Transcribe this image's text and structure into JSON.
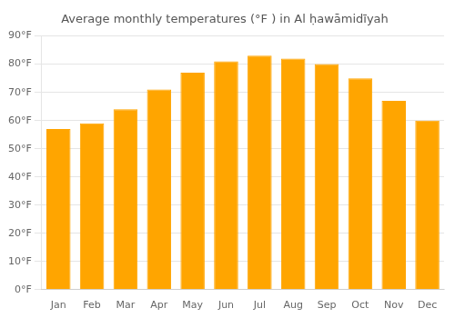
{
  "chart_data": {
    "type": "bar",
    "title": "Average monthly temperatures (°F ) in Al ḥawāmidīyah",
    "categories": [
      "Jan",
      "Feb",
      "Mar",
      "Apr",
      "May",
      "Jun",
      "Jul",
      "Aug",
      "Sep",
      "Oct",
      "Nov",
      "Dec"
    ],
    "values": [
      57,
      59,
      64,
      71,
      77,
      81,
      83,
      82,
      80,
      75,
      67,
      60
    ],
    "color": "#FFA500",
    "ylim": [
      0,
      90
    ],
    "yticks": [
      {
        "value": 0,
        "label": "0°F"
      },
      {
        "value": 10,
        "label": "10°F"
      },
      {
        "value": 20,
        "label": "20°F"
      },
      {
        "value": 30,
        "label": "30°F"
      },
      {
        "value": 40,
        "label": "40°F"
      },
      {
        "value": 50,
        "label": "50°F"
      },
      {
        "value": 60,
        "label": "60°F"
      },
      {
        "value": 70,
        "label": "70°F"
      },
      {
        "value": 80,
        "label": "80°F"
      },
      {
        "value": 90,
        "label": "90°F"
      }
    ],
    "grid": true
  }
}
